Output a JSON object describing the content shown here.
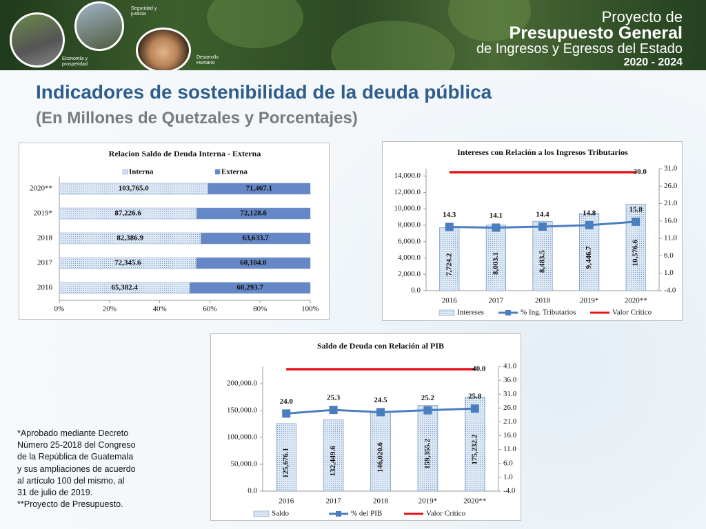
{
  "header": {
    "brand": [
      "Proyecto de",
      "Presupuesto General",
      "de Ingresos y Egresos del Estado",
      "2020 - 2024"
    ],
    "icons": [
      "Seguridad y justicia",
      "Economía y prosperidad",
      "Desarrollo Humano"
    ]
  },
  "title": "Indicadores de sostenibilidad de la deuda pública",
  "subtitle": "(En Millones de Quetzales y Porcentajes)",
  "footnote": [
    "*Aprobado mediante Decreto",
    "Número 25-2018 del Congreso",
    "de la República de Guatemala",
    "y sus ampliaciones de acuerdo",
    "al artículo 100 del mismo, al",
    "31 de julio de 2019.",
    "**Proyecto de Presupuesto."
  ],
  "chart_data": [
    {
      "type": "bar",
      "orientation": "horizontal",
      "stacked": "percent",
      "title": "Relacion Saldo de Deuda Interna - Externa",
      "categories": [
        "2020**",
        "2019*",
        "2018",
        "2017",
        "2016"
      ],
      "series": [
        {
          "name": "Interna",
          "color": "#dde8f5",
          "pattern": "dots",
          "values": [
            103765.0,
            87226.6,
            82386.9,
            72345.6,
            65382.4
          ],
          "value_labels": [
            "103,765.0",
            "87,226.6",
            "82,386.9",
            "72,345.6",
            "65,382.4"
          ]
        },
        {
          "name": "Externa",
          "color": "#6687c6",
          "values": [
            71467.1,
            72128.6,
            63633.7,
            60104.0,
            60293.7
          ],
          "value_labels": [
            "71,467.1",
            "72,128.6",
            "63,633.7",
            "60,104.0",
            "60,293.7"
          ]
        }
      ],
      "xlim": [
        0,
        100
      ],
      "xticks": [
        {
          "value": 0,
          "label": "0%"
        },
        {
          "value": 20,
          "label": "20%"
        },
        {
          "value": 40,
          "label": "40%"
        },
        {
          "value": 60,
          "label": "60%"
        },
        {
          "value": 80,
          "label": "80%"
        },
        {
          "value": 100,
          "label": "100%"
        }
      ],
      "legend": "top"
    },
    {
      "type": "combo",
      "title": "Intereses con Relación a los Ingresos Tributarios",
      "categories": [
        "2016",
        "2017",
        "2018",
        "2019*",
        "2020**"
      ],
      "series": [
        {
          "name": "Intereses",
          "kind": "bar",
          "color": "#dde8f5",
          "pattern": "dots",
          "values": [
            7724.2,
            8003.1,
            8483.5,
            9446.7,
            10576.6
          ],
          "value_labels": [
            "7,724.2",
            "8,003.1",
            "8,483.5",
            "9,446.7",
            "10,576.6"
          ]
        },
        {
          "name": "% Ing. Tributarios",
          "kind": "line",
          "marker": "square",
          "labels": true,
          "color": "#4a7ebf",
          "axis": "y2",
          "values": [
            14.3,
            14.1,
            14.4,
            14.8,
            15.8
          ]
        },
        {
          "name": "Valor Crítico",
          "kind": "line",
          "color": "#e8141b",
          "axis": "y2",
          "values": [
            30,
            30,
            30,
            30,
            30
          ],
          "value_labels": [
            null,
            null,
            null,
            null,
            "30.0"
          ]
        }
      ],
      "ylim": [
        0,
        14900
      ],
      "yticks": [
        {
          "value": 0,
          "label": "0.0"
        },
        {
          "value": 2000,
          "label": "2,000.0"
        },
        {
          "value": 4000,
          "label": "4,000.0"
        },
        {
          "value": 6000,
          "label": "6,000.0"
        },
        {
          "value": 8000,
          "label": "8,000.0"
        },
        {
          "value": 10000,
          "label": "10,000.0"
        },
        {
          "value": 12000,
          "label": "12,000.0"
        },
        {
          "value": 14000,
          "label": "14,000.0"
        }
      ],
      "y2lim": [
        -4,
        31
      ],
      "y2ticks": [
        {
          "value": -4,
          "label": "-4.0"
        },
        {
          "value": 1,
          "label": "1.0"
        },
        {
          "value": 6,
          "label": "6.0"
        },
        {
          "value": 11,
          "label": "11.0"
        },
        {
          "value": 16,
          "label": "16.0"
        },
        {
          "value": 21,
          "label": "21.0"
        },
        {
          "value": 26,
          "label": "26.0"
        },
        {
          "value": 31,
          "label": "31.0"
        }
      ],
      "legend": "bottom"
    },
    {
      "type": "combo",
      "title": "Saldo de Deuda con Relación al PIB",
      "categories": [
        "2016",
        "2017",
        "2018",
        "2019*",
        "2020**"
      ],
      "series": [
        {
          "name": "Saldo",
          "kind": "bar",
          "color": "#dde8f5",
          "pattern": "dots",
          "values": [
            125676.1,
            132449.6,
            146020.6,
            159355.2,
            175232.2
          ],
          "value_labels": [
            "125,676.1",
            "132,449.6",
            "146,020.6",
            "159,355.2",
            "175,232.2"
          ]
        },
        {
          "name": "% del PIB",
          "kind": "line",
          "marker": "square",
          "color": "#4a7ebf",
          "axis": "y2",
          "values": [
            24.0,
            25.3,
            24.5,
            25.2,
            25.8
          ],
          "value_labels": [
            "24.0",
            "25.3",
            "24.5",
            "25.2",
            "25.8"
          ]
        },
        {
          "name": "Valor Crítico",
          "kind": "line",
          "color": "#e8141b",
          "axis": "y2",
          "values": [
            40,
            40,
            40,
            40,
            40
          ],
          "value_labels": [
            null,
            null,
            null,
            null,
            "40.0"
          ]
        }
      ],
      "ylim": [
        0,
        232000
      ],
      "yticks": [
        {
          "value": 0,
          "label": "0.0"
        },
        {
          "value": 50000,
          "label": "50,000.0"
        },
        {
          "value": 100000,
          "label": "100,000.0"
        },
        {
          "value": 150000,
          "label": "150,000.0"
        },
        {
          "value": 200000,
          "label": "200,000.0"
        }
      ],
      "y2lim": [
        -4,
        41
      ],
      "y2ticks": [
        {
          "value": -4,
          "label": "-4.0"
        },
        {
          "value": 1,
          "label": "1.0"
        },
        {
          "value": 6,
          "label": "6.0"
        },
        {
          "value": 11,
          "label": "11.0"
        },
        {
          "value": 16,
          "label": "16.0"
        },
        {
          "value": 21,
          "label": "21.0"
        },
        {
          "value": 26,
          "label": "26.0"
        },
        {
          "value": 31,
          "label": "31.0"
        },
        {
          "value": 36,
          "label": "36.0"
        },
        {
          "value": 41,
          "label": "41.0"
        }
      ],
      "legend": "bottom"
    }
  ]
}
